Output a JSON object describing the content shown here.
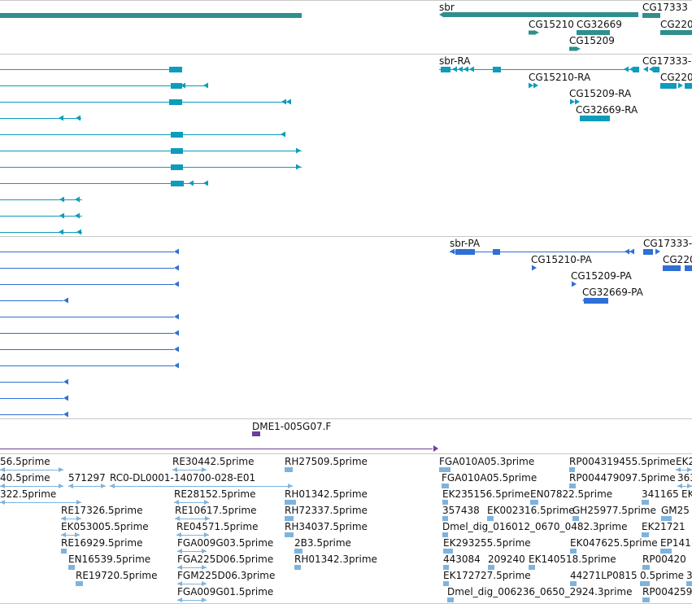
{
  "colors": {
    "gene": "#2f8f8c",
    "mrna": "#0d9cba",
    "protein": "#2f6fd6",
    "oligo": "#6e3e9c",
    "est": "#7fb3dc",
    "separator": "#c8c8c8"
  },
  "tracks": {
    "genes": {
      "labels": [
        "sbr",
        "CG17333",
        "CG15210",
        "CG32669",
        "CG220",
        "CG15209"
      ]
    },
    "mrna": {
      "labels": [
        "sbr-RA",
        "CG17333-",
        "CG15210-RA",
        "CG220",
        "CG15209-RA",
        "CG32669-RA"
      ]
    },
    "protein": {
      "labels": [
        "sbr-PA",
        "CG17333-",
        "CG15210-PA",
        "CG220",
        "CG15209-PA",
        "CG32669-PA"
      ]
    },
    "oligo": {
      "labels": [
        "DME1-005G07.F"
      ]
    },
    "est": {
      "labels": [
        "56.5prime",
        "RE30442.5prime",
        "RH27509.5prime",
        "FGA010A05.3prime",
        "RP004319455.5prime",
        "EK2",
        "40.5prime",
        "571297",
        "RC0-DL0001-140700-028-E01",
        "FGA010A05.5prime",
        "RP004479097.5prime",
        "363",
        "322.5prime",
        "RE28152.5prime",
        "RH01342.5prime",
        "EK235156.5prime",
        "EN07822.5prime",
        "341165",
        "EK",
        "RE17326.5prime",
        "RE10617.5prime",
        "RH72337.5prime",
        "357438",
        "EK002316.5prime",
        "GH25977.5prime",
        "GM25",
        "EK053005.5prime",
        "RE04571.5prime",
        "RH34037.5prime",
        "Dmel_dig_016012_0670_0482.3prime",
        "EK21721",
        "RE16929.5prime",
        "FGA009G03.5prime",
        "2B3.5prime",
        "EK293255.5prime",
        "EK047625.5prime",
        "EP141",
        "EN16539.5prime",
        "FGA225D06.5prime",
        "RH01342.3prime",
        "443084",
        "209240",
        "EK140518.5prime",
        "RP00420",
        "RE19720.5prime",
        "FGM225D06.3prime",
        "EK172727.5prime",
        "44271LP0815",
        "0.5prime",
        "3",
        "FGA009G01.5prime",
        "Dmel_dig_006236_0650_2924.3prime",
        "RP004259"
      ]
    }
  }
}
